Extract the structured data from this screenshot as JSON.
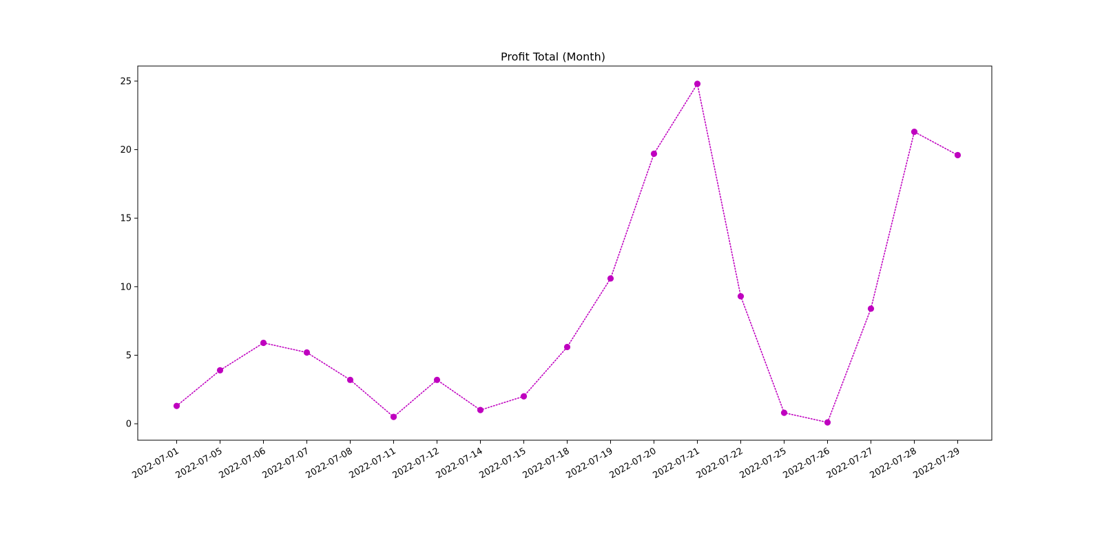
{
  "chart_data": {
    "type": "line",
    "title": "Profit Total (Month)",
    "xlabel": "",
    "ylabel": "",
    "x": [
      "2022-07-01",
      "2022-07-05",
      "2022-07-06",
      "2022-07-07",
      "2022-07-08",
      "2022-07-11",
      "2022-07-12",
      "2022-07-14",
      "2022-07-15",
      "2022-07-18",
      "2022-07-19",
      "2022-07-20",
      "2022-07-21",
      "2022-07-22",
      "2022-07-25",
      "2022-07-26",
      "2022-07-27",
      "2022-07-28",
      "2022-07-29"
    ],
    "series": [
      {
        "values": [
          1.3,
          3.9,
          5.9,
          5.2,
          3.2,
          0.5,
          3.2,
          1.0,
          2.0,
          5.6,
          10.6,
          19.7,
          24.8,
          9.3,
          0.8,
          0.1,
          8.4,
          21.3,
          19.6
        ],
        "color": "#bf00bf",
        "line_style": "dotted",
        "marker": "circle"
      }
    ],
    "ylim": [
      -1.2,
      26.1
    ],
    "yticks": [
      0,
      5,
      10,
      15,
      20,
      25
    ],
    "grid": false,
    "legend": "none",
    "x_tick_rotation": "30 degrees"
  }
}
